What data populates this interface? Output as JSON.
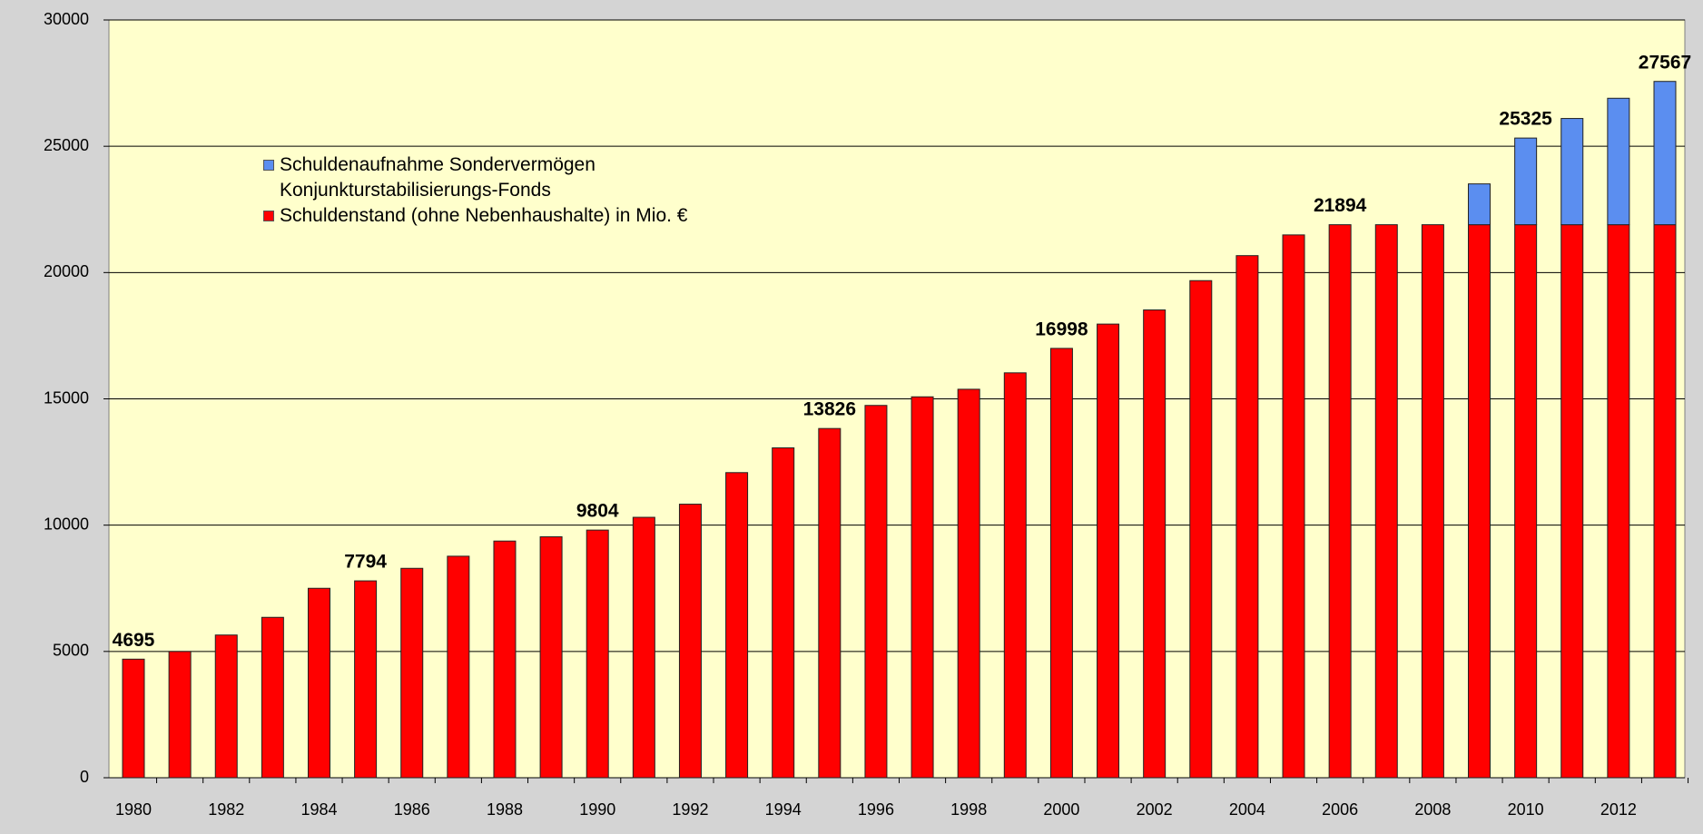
{
  "chart_data": {
    "type": "stacked_bar",
    "categories": [
      "1980",
      null,
      "1982",
      null,
      "1984",
      null,
      "1986",
      null,
      "1988",
      null,
      "1990",
      null,
      "1992",
      null,
      "1994",
      null,
      "1996",
      null,
      "1998",
      null,
      "2000",
      null,
      "2002",
      null,
      "2004",
      null,
      "2006",
      null,
      "2008",
      null,
      "2010",
      null,
      "2012",
      null
    ],
    "series": [
      {
        "name": "Schuldenstand (ohne Nebenhaushalte) in Mio. €",
        "color": "#ff0000",
        "values": [
          4695,
          5000,
          5650,
          6350,
          7500,
          7794,
          8290,
          8770,
          9370,
          9540,
          9804,
          10310,
          10830,
          12080,
          13060,
          13826,
          14740,
          15080,
          15380,
          16030,
          16998,
          17960,
          18520,
          19680,
          20670,
          21490,
          21894,
          21894,
          21894,
          21894,
          21894,
          21894,
          21894,
          21894
        ]
      },
      {
        "name": "Schuldenaufnahme Sondervermögen Konjunkturstabilisierungs-Fonds",
        "color": "#5b8ef0",
        "values": [
          null,
          null,
          null,
          null,
          null,
          null,
          null,
          null,
          null,
          null,
          null,
          null,
          null,
          null,
          null,
          null,
          null,
          null,
          null,
          null,
          null,
          null,
          null,
          null,
          null,
          null,
          null,
          null,
          null,
          1616,
          3431,
          4206,
          5006,
          5673
        ]
      }
    ],
    "total_labels": [
      4695,
      null,
      null,
      null,
      null,
      7794,
      null,
      null,
      null,
      null,
      9804,
      null,
      null,
      null,
      null,
      13826,
      null,
      null,
      null,
      null,
      16998,
      null,
      null,
      null,
      null,
      null,
      21894,
      null,
      null,
      null,
      25325,
      null,
      null,
      27567
    ],
    "ylim": [
      0,
      30000
    ],
    "yticks": [
      0,
      5000,
      10000,
      15000,
      20000,
      25000,
      30000
    ],
    "grid": true
  }
}
